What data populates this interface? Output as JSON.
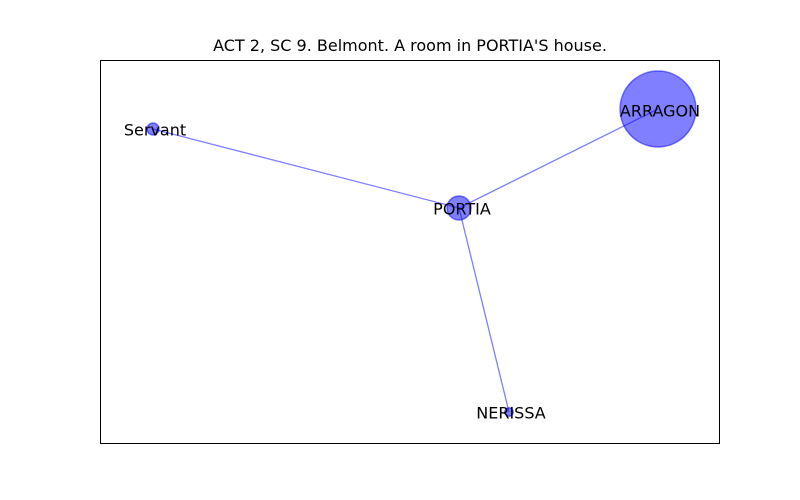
{
  "title": "ACT 2, SC 9. Belmont. A room in PORTIA'S house.",
  "colors": {
    "node": "#0000ff",
    "edge": "#0000ff"
  },
  "nodes": [
    {
      "id": "servant",
      "label": "Servant",
      "weight": 1
    },
    {
      "id": "portia",
      "label": "PORTIA",
      "weight": 4
    },
    {
      "id": "arragon",
      "label": "ARRAGON",
      "weight": 40
    },
    {
      "id": "nerissa",
      "label": "NERISSA",
      "weight": 0.5
    }
  ],
  "edges": [
    {
      "source": "servant",
      "target": "portia"
    },
    {
      "source": "portia",
      "target": "arragon"
    },
    {
      "source": "portia",
      "target": "nerissa"
    }
  ]
}
